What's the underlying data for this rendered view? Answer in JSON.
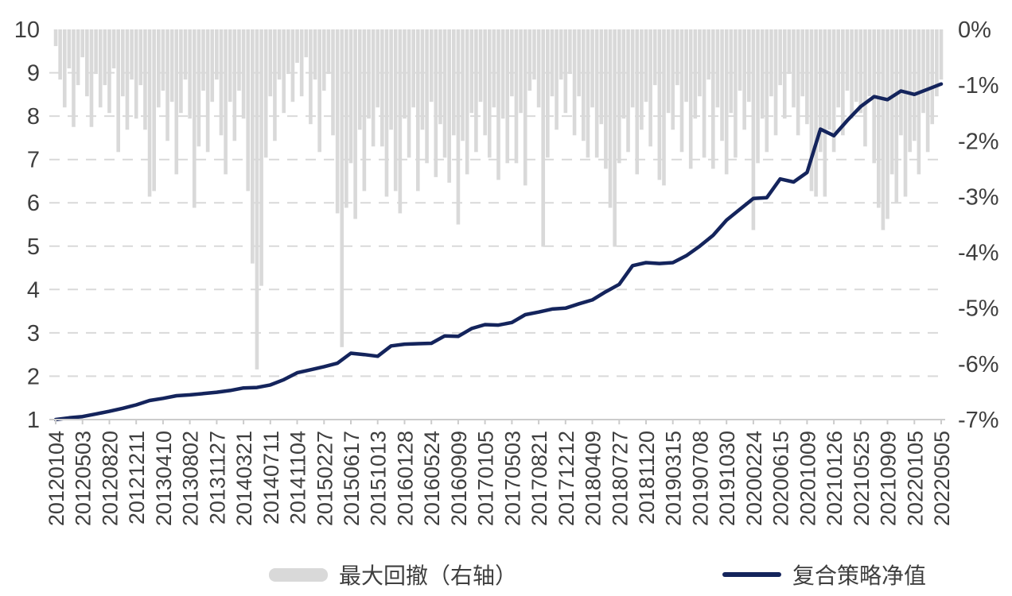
{
  "chart_data": {
    "type": "combo",
    "title": "",
    "x_tick_labels": [
      "20120104",
      "20120503",
      "20120820",
      "20121211",
      "20130410",
      "20130802",
      "20131127",
      "20140321",
      "20140711",
      "20141104",
      "20150227",
      "20150617",
      "20151013",
      "20160128",
      "20160524",
      "20160909",
      "20170105",
      "20170503",
      "20170821",
      "20171212",
      "20180409",
      "20180727",
      "20181120",
      "20190315",
      "20190708",
      "20191030",
      "20200224",
      "20200615",
      "20201009",
      "20210126",
      "20210525",
      "20210909",
      "20220105",
      "20220505"
    ],
    "left_axis": {
      "min": 1,
      "max": 10,
      "tick_labels": [
        "10",
        "9",
        "8",
        "7",
        "6",
        "5",
        "4",
        "3",
        "2",
        "1"
      ]
    },
    "right_axis": {
      "min": -7,
      "max": 0,
      "tick_labels": [
        "0%",
        "-1%",
        "-2%",
        "-3%",
        "-4%",
        "-5%",
        "-6%",
        "-7%"
      ],
      "unit": "%"
    },
    "grid": {
      "horizontal": "dashed",
      "color": "#d9d9d9"
    },
    "legend_position": "bottom",
    "series": [
      {
        "name": "最大回撤（右轴）",
        "type": "bar",
        "axis": "right",
        "color": "#d9d9d9",
        "unit": "%",
        "values": [
          -0.3,
          -0.9,
          -1.4,
          -0.7,
          -1.75,
          -1.0,
          -0.5,
          -1.2,
          -1.75,
          -0.8,
          -1.4,
          -1.0,
          -1.5,
          -0.7,
          -2.2,
          -1.2,
          -1.8,
          -0.9,
          -1.6,
          -1.0,
          -1.8,
          -3.0,
          -2.9,
          -1.4,
          -1.1,
          -2.0,
          -1.3,
          -2.6,
          -1.5,
          -0.9,
          -1.6,
          -3.2,
          -2.1,
          -1.1,
          -2.2,
          -1.3,
          -0.9,
          -1.9,
          -2.6,
          -1.3,
          -2.0,
          -1.1,
          -1.6,
          -2.9,
          -4.2,
          -6.1,
          -4.6,
          -2.3,
          -1.2,
          -2.0,
          -0.9,
          -1.5,
          -0.8,
          -1.3,
          -0.6,
          -1.2,
          -0.5,
          -1.7,
          -0.9,
          -2.2,
          -1.1,
          -0.8,
          -1.9,
          -3.3,
          -5.7,
          -3.2,
          -2.4,
          -3.4,
          -1.8,
          -2.9,
          -1.6,
          -2.1,
          -1.4,
          -2.1,
          -3.0,
          -1.8,
          -2.9,
          -3.3,
          -1.6,
          -2.3,
          -1.4,
          -2.9,
          -1.8,
          -2.4,
          -1.3,
          -2.65,
          -1.7,
          -2.3,
          -2.75,
          -1.9,
          -3.5,
          -2.0,
          -2.6,
          -1.5,
          -2.2,
          -1.3,
          -1.9,
          -2.3,
          -1.4,
          -2.7,
          -1.6,
          -2.4,
          -1.2,
          -2.4,
          -1.5,
          -2.8,
          -1.1,
          -0.9,
          -1.4,
          -3.9,
          -2.3,
          -1.2,
          -1.8,
          -0.9,
          -1.5,
          -0.8,
          -1.9,
          -1.2,
          -2.0,
          -2.3,
          -1.4,
          -2.3,
          -1.7,
          -2.5,
          -3.2,
          -3.9,
          -2.4,
          -1.6,
          -2.2,
          -1.4,
          -2.6,
          -1.8,
          -1.3,
          -2.1,
          -1.0,
          -2.7,
          -2.8,
          -1.5,
          -1.8,
          -1.0,
          -2.2,
          -1.3,
          -2.5,
          -1.6,
          -1.2,
          -2.3,
          -0.9,
          -2.5,
          -1.4,
          -2.0,
          -2.6,
          -1.5,
          -2.3,
          -1.1,
          -1.8,
          -1.3,
          -3.6,
          -2.4,
          -1.6,
          -2.2,
          -1.2,
          -1.9,
          -1.0,
          -1.6,
          -0.8,
          -1.4,
          -1.9,
          -1.2,
          -1.7,
          -2.9,
          -3.0,
          -2.2,
          -3.0,
          -1.8,
          -2.2,
          -1.4,
          -1.9,
          -1.1,
          -1.6,
          -1.3,
          -1.5,
          -2.1,
          -1.2,
          -2.4,
          -3.2,
          -3.6,
          -3.4,
          -2.6,
          -3.1,
          -1.9,
          -3.0,
          -2.2,
          -2.0,
          -2.6,
          -1.5,
          -2.2,
          -1.7,
          -1.2,
          -0.9
        ]
      },
      {
        "name": "复合策略净值",
        "type": "line",
        "axis": "left",
        "color": "#14245c",
        "values": [
          1.0,
          1.04,
          1.07,
          1.13,
          1.19,
          1.26,
          1.34,
          1.44,
          1.49,
          1.55,
          1.57,
          1.6,
          1.63,
          1.67,
          1.73,
          1.74,
          1.8,
          1.92,
          2.08,
          2.15,
          2.22,
          2.3,
          2.53,
          2.5,
          2.46,
          2.7,
          2.74,
          2.75,
          2.76,
          2.93,
          2.92,
          3.1,
          3.19,
          3.18,
          3.24,
          3.42,
          3.48,
          3.55,
          3.57,
          3.67,
          3.76,
          3.95,
          4.12,
          4.55,
          4.62,
          4.6,
          4.62,
          4.78,
          5.0,
          5.25,
          5.6,
          5.85,
          6.1,
          6.12,
          6.55,
          6.48,
          6.7,
          7.7,
          7.55,
          7.9,
          8.22,
          8.45,
          8.38,
          8.58,
          8.5,
          8.62,
          8.74
        ]
      }
    ]
  },
  "legend": {
    "items": [
      {
        "label": "最大回撤（右轴）",
        "swatch": "bar-swatch",
        "color": "#d9d9d9"
      },
      {
        "label": "复合策略净值",
        "swatch": "line-swatch",
        "color": "#14245c"
      }
    ]
  },
  "colors": {
    "bar_gray": "#d9d9d9",
    "line_navy": "#14245c",
    "grid": "#d9d9d9",
    "axis_line": "#cccccc",
    "text": "#3f3f3f"
  }
}
